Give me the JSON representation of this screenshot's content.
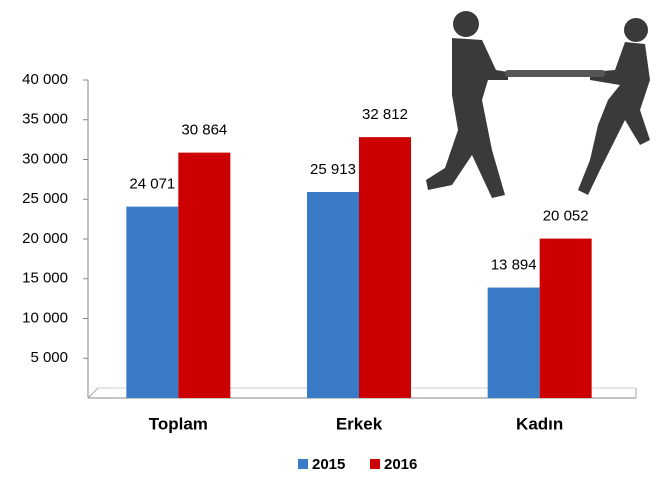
{
  "chart_data": {
    "type": "bar",
    "categories": [
      "Toplam",
      "Erkek",
      "Kadın"
    ],
    "series": [
      {
        "name": "2015",
        "color": "#3a7bc8",
        "values": [
          24071,
          25913,
          13894
        ],
        "value_labels": [
          "24 071",
          "25 913",
          "13 894"
        ]
      },
      {
        "name": "2016",
        "color": "#cc0000",
        "values": [
          30864,
          32812,
          20052
        ],
        "value_labels": [
          "30 864",
          "32 812",
          "20 052"
        ]
      }
    ],
    "ylim": [
      0,
      40000
    ],
    "yticks": [
      {
        "value": 5000,
        "label": "5 000"
      },
      {
        "value": 10000,
        "label": "10 000"
      },
      {
        "value": 15000,
        "label": "15 000"
      },
      {
        "value": 20000,
        "label": "20 000"
      },
      {
        "value": 25000,
        "label": "25 000"
      },
      {
        "value": 30000,
        "label": "30 000"
      },
      {
        "value": 35000,
        "label": "35 000"
      },
      {
        "value": 40000,
        "label": "40 000"
      }
    ],
    "legend": "bottom"
  }
}
